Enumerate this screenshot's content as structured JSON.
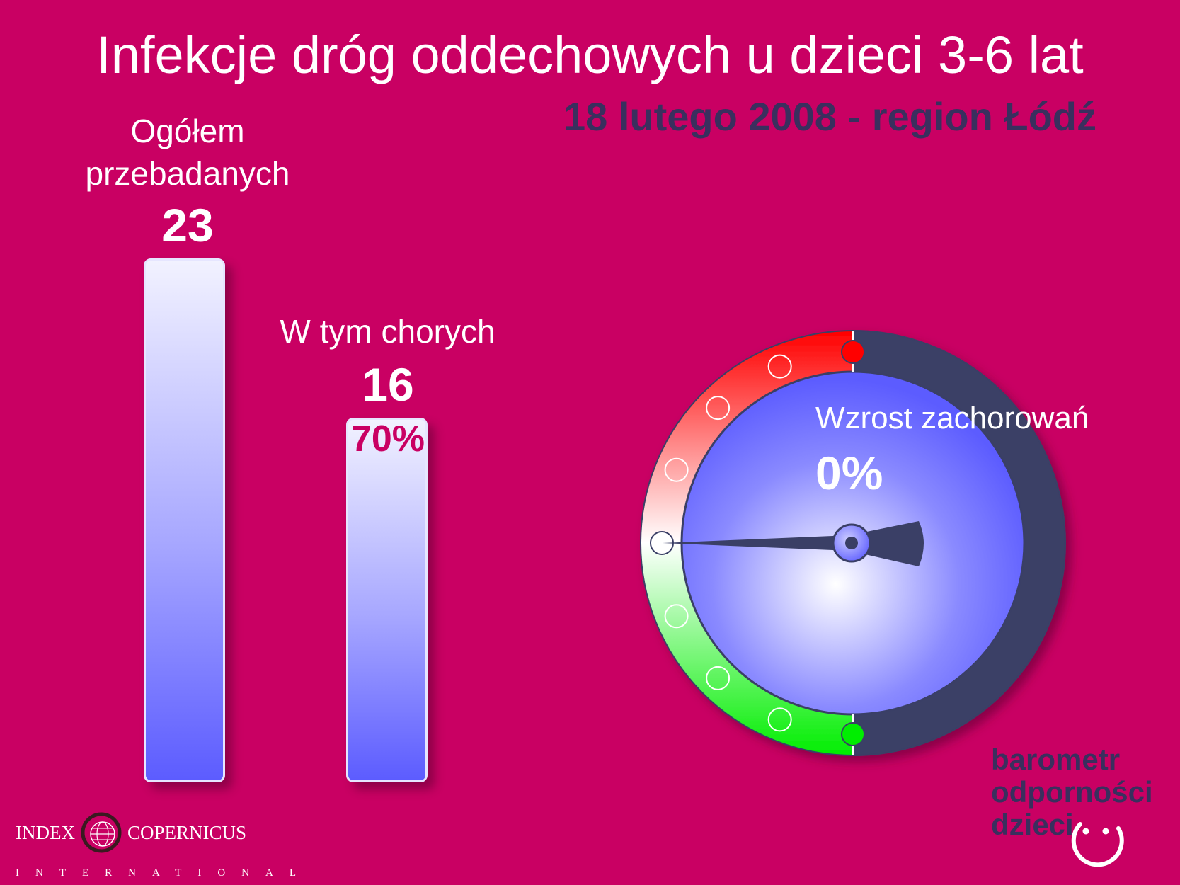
{
  "title": "Infekcje dróg oddechowych u dzieci 3-6 lat",
  "subtitle": "18 lutego 2008 - region Łódź",
  "chart_data": {
    "type": "bar",
    "categories": [
      "Ogółem przebadanych",
      "W tym chorych"
    ],
    "values": [
      23,
      16
    ],
    "labels": {
      "total_line1": "Ogółem",
      "total_line2": "przebadanych",
      "total_value": "23",
      "sick": "W tym chorych",
      "sick_value": "16",
      "sick_percent": "70%"
    },
    "ylim": [
      0,
      23
    ]
  },
  "gauge": {
    "label": "Wzrost zachorowań",
    "value_text": "0%",
    "value": 0,
    "colors": {
      "red": "#ff0000",
      "green": "#00ee00",
      "dark": "#3a3f66",
      "dial": "#6a6aff"
    }
  },
  "logos": {
    "index_left": "INDEX",
    "index_right": "COPERNICUS",
    "index_sub": "INTERNATIONAL",
    "barometr": [
      "barometr",
      "odporności",
      "dzieci"
    ],
    "globe_icon": "globe-icon",
    "smile_icon": "smile-icon"
  }
}
